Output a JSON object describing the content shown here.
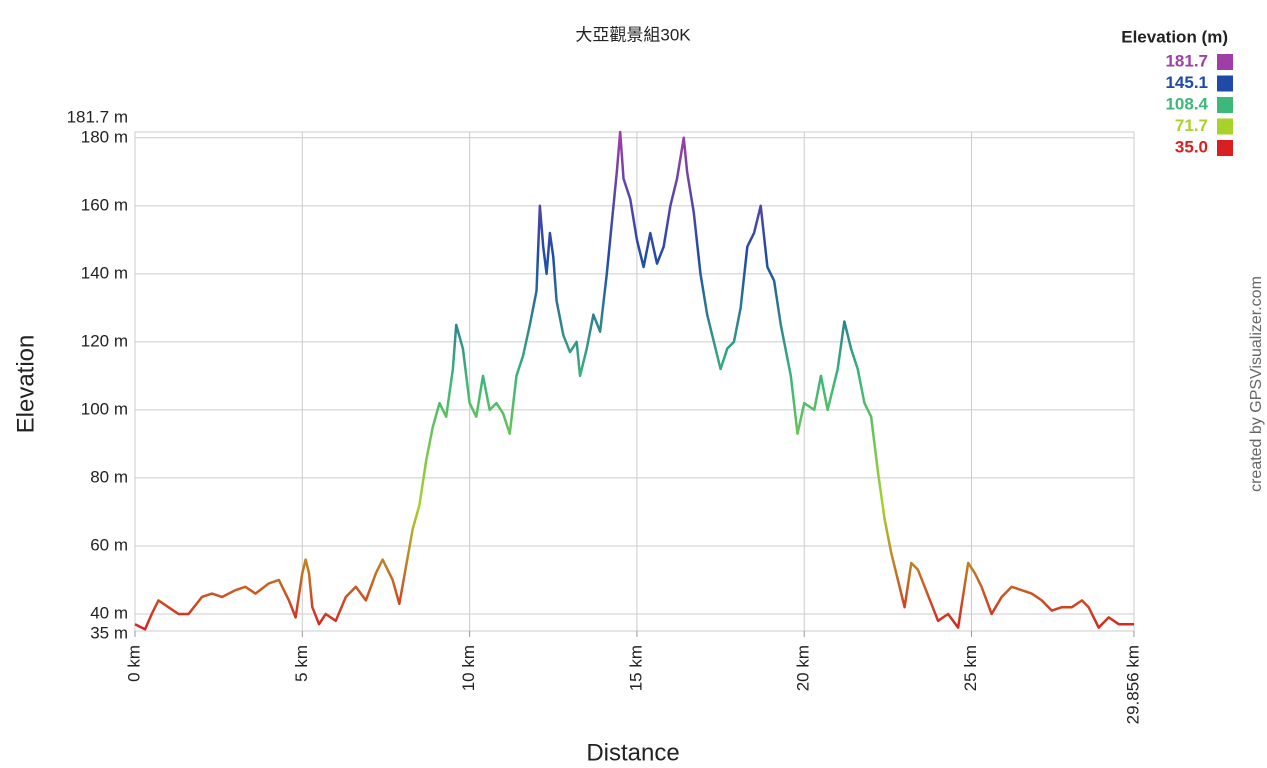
{
  "chart_data": {
    "type": "line",
    "title": "大亞觀景組30K",
    "x_label": "Distance",
    "y_label": "Elevation",
    "watermark": "created by GPSVisualizer.com",
    "xlim": [
      0,
      29.856
    ],
    "ylim": [
      35,
      181.7
    ],
    "grid": true,
    "xticks": [
      {
        "value": 0,
        "label": "0 km"
      },
      {
        "value": 5,
        "label": "5 km"
      },
      {
        "value": 10,
        "label": "10 km"
      },
      {
        "value": 15,
        "label": "15 km"
      },
      {
        "value": 20,
        "label": "20 km"
      },
      {
        "value": 25,
        "label": "25 km"
      },
      {
        "value": 29.856,
        "label": "29.856 km"
      }
    ],
    "yticks": [
      {
        "value": 35,
        "label": "35 m"
      },
      {
        "value": 40,
        "label": "40 m"
      },
      {
        "value": 60,
        "label": "60 m"
      },
      {
        "value": 80,
        "label": "80 m"
      },
      {
        "value": 100,
        "label": "100 m"
      },
      {
        "value": 120,
        "label": "120 m"
      },
      {
        "value": 140,
        "label": "140 m"
      },
      {
        "value": 160,
        "label": "160 m"
      },
      {
        "value": 180,
        "label": "180 m"
      },
      {
        "value": 181.7,
        "label": "181.7 m"
      }
    ],
    "legend": {
      "title": "Elevation (m)",
      "items": [
        {
          "value": 181.7,
          "label": "181.7",
          "color": "#a03ea8"
        },
        {
          "value": 145.1,
          "label": "145.1",
          "color": "#1f4aa8"
        },
        {
          "value": 108.4,
          "label": "108.4",
          "color": "#3cb878"
        },
        {
          "value": 71.7,
          "label": "71.7",
          "color": "#a8d22a"
        },
        {
          "value": 35,
          "label": "35.0",
          "color": "#d92020"
        }
      ]
    },
    "x": [
      0,
      0.3,
      0.5,
      0.7,
      1.0,
      1.3,
      1.6,
      2.0,
      2.3,
      2.6,
      3.0,
      3.3,
      3.6,
      4.0,
      4.3,
      4.6,
      4.8,
      5.0,
      5.1,
      5.2,
      5.3,
      5.5,
      5.7,
      6.0,
      6.3,
      6.6,
      6.9,
      7.2,
      7.4,
      7.7,
      7.9,
      8.1,
      8.3,
      8.5,
      8.7,
      8.9,
      9.1,
      9.3,
      9.5,
      9.6,
      9.8,
      10.0,
      10.2,
      10.4,
      10.6,
      10.8,
      11.0,
      11.2,
      11.4,
      11.6,
      11.8,
      12.0,
      12.1,
      12.2,
      12.3,
      12.4,
      12.5,
      12.6,
      12.8,
      13.0,
      13.2,
      13.3,
      13.5,
      13.7,
      13.9,
      14.1,
      14.3,
      14.4,
      14.5,
      14.6,
      14.8,
      15.0,
      15.2,
      15.4,
      15.6,
      15.8,
      16.0,
      16.2,
      16.4,
      16.5,
      16.7,
      16.9,
      17.1,
      17.3,
      17.5,
      17.7,
      17.9,
      18.1,
      18.3,
      18.5,
      18.7,
      18.9,
      19.1,
      19.3,
      19.6,
      19.8,
      20.0,
      20.3,
      20.5,
      20.7,
      21.0,
      21.2,
      21.4,
      21.6,
      21.8,
      22.0,
      22.2,
      22.4,
      22.6,
      22.8,
      23.0,
      23.2,
      23.4,
      23.6,
      23.8,
      24.0,
      24.3,
      24.6,
      24.9,
      25.1,
      25.3,
      25.6,
      25.9,
      26.2,
      26.5,
      26.8,
      27.1,
      27.4,
      27.7,
      28.0,
      28.3,
      28.5,
      28.8,
      29.1,
      29.4,
      29.856
    ],
    "values": [
      37,
      35.5,
      40,
      44,
      42,
      40,
      40,
      45,
      46,
      45,
      47,
      48,
      46,
      49,
      50,
      44,
      39,
      52,
      56,
      52,
      42,
      37,
      40,
      38,
      45,
      48,
      44,
      52,
      56,
      50,
      43,
      54,
      65,
      72,
      85,
      95,
      102,
      98,
      112,
      125,
      118,
      102,
      98,
      110,
      100,
      102,
      99,
      93,
      110,
      116,
      125,
      135,
      160,
      148,
      140,
      152,
      145,
      132,
      122,
      117,
      120,
      110,
      118,
      128,
      123,
      140,
      160,
      170,
      181.7,
      168,
      162,
      150,
      142,
      152,
      143,
      148,
      160,
      168,
      180,
      170,
      158,
      140,
      128,
      120,
      112,
      118,
      120,
      130,
      148,
      152,
      160,
      142,
      138,
      125,
      110,
      93,
      102,
      100,
      110,
      100,
      112,
      126,
      118,
      112,
      102,
      98,
      82,
      68,
      58,
      50,
      42,
      55,
      53,
      48,
      43,
      38,
      40,
      36,
      55,
      52,
      48,
      40,
      45,
      48,
      47,
      46,
      44,
      41,
      42,
      42,
      44,
      42,
      36,
      39,
      37,
      37
    ]
  }
}
